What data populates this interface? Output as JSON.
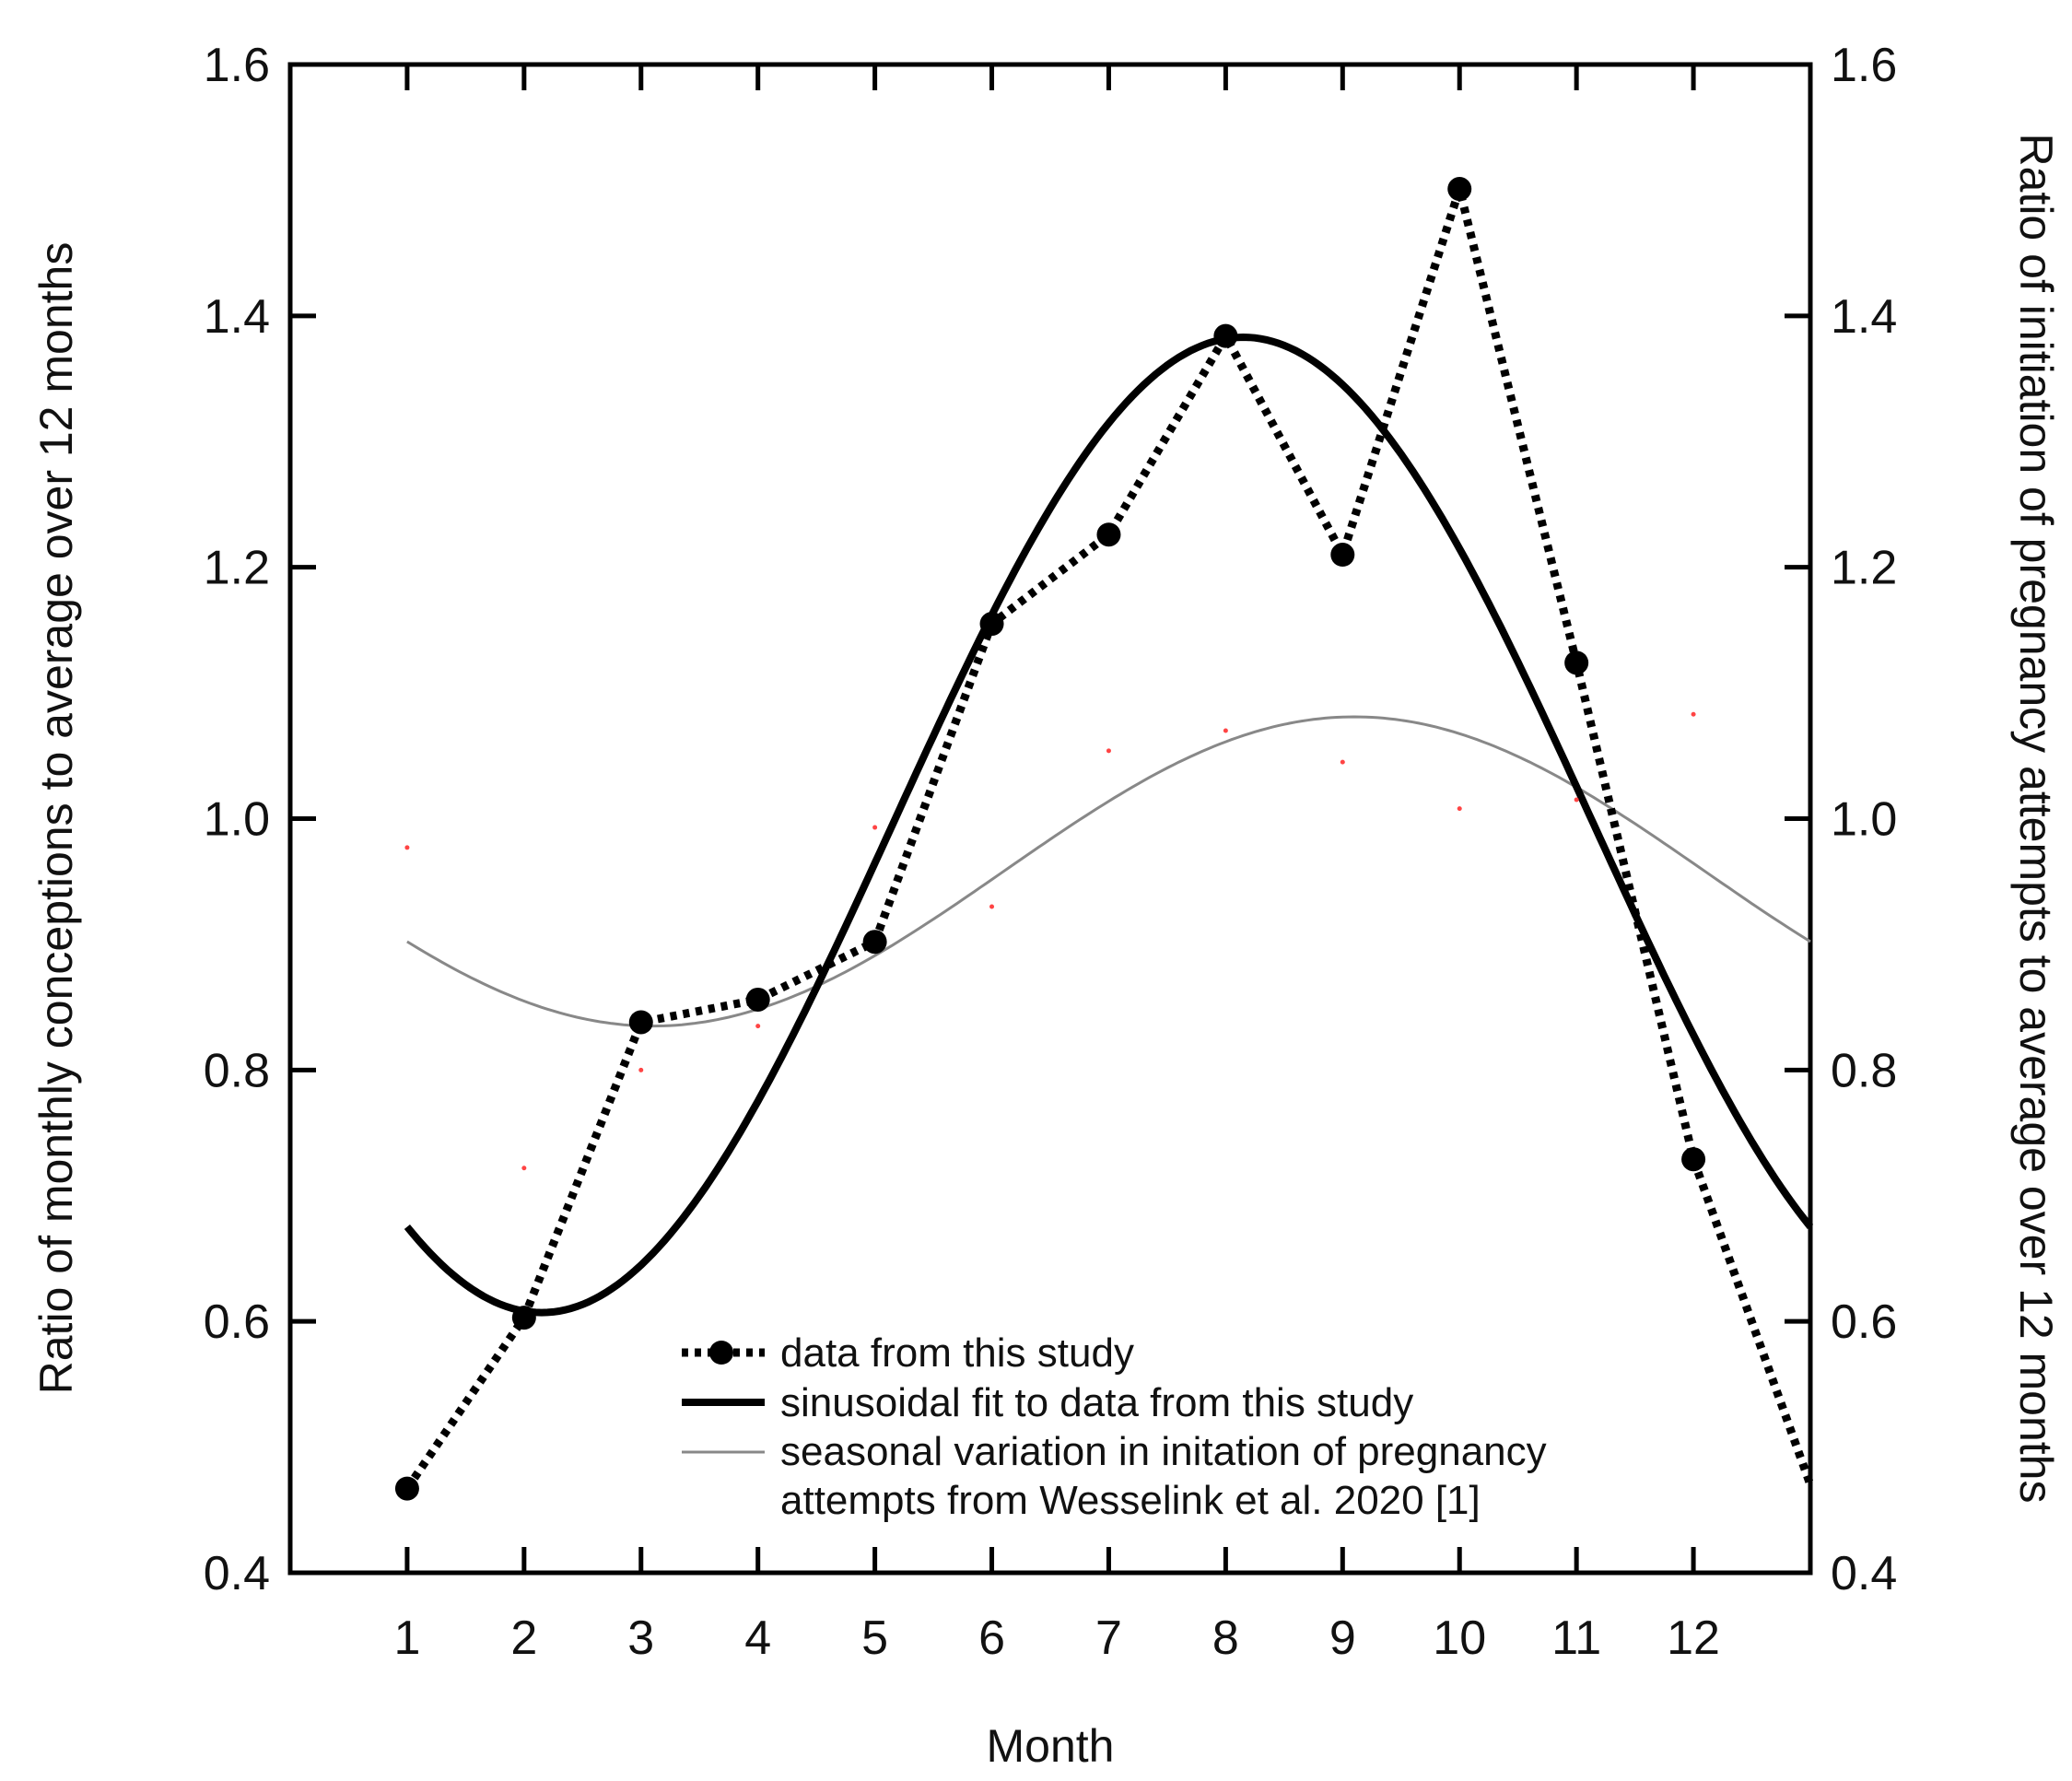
{
  "chart_data": {
    "type": "line",
    "title": "",
    "xlabel": "Month",
    "ylabel": "Ratio of monthly conceptions to average over 12 months",
    "ylabel_right": "Ratio of initiation of pregnancy attempts to average over 12 months",
    "x_categories": [
      "1",
      "2",
      "3",
      "4",
      "5",
      "6",
      "7",
      "8",
      "9",
      "10",
      "11",
      "12"
    ],
    "xlim": [
      0,
      13
    ],
    "ylim": [
      0.4,
      1.6
    ],
    "ylim_right": [
      0.4,
      1.6
    ],
    "y_ticks": [
      "0.4",
      "0.6",
      "0.8",
      "1.0",
      "1.2",
      "1.4",
      "1.6"
    ],
    "y_ticks_right": [
      "0.4",
      "0.6",
      "0.8",
      "1.0",
      "1.2",
      "1.4",
      "1.6"
    ],
    "grid": false,
    "legend_position": "bottom-center",
    "series": [
      {
        "name": "data from this study",
        "style": "dotted-with-markers",
        "color": "#000000",
        "x": [
          1,
          2,
          3,
          4,
          5,
          6,
          7,
          8,
          9,
          10,
          11,
          12
        ],
        "values": [
          0.467,
          0.603,
          0.838,
          0.856,
          0.902,
          1.155,
          1.226,
          1.384,
          1.21,
          1.501,
          1.124,
          0.729
        ],
        "extends_to": {
          "x": 13,
          "y": 0.47
        }
      },
      {
        "name": "sinusoidal fit to data from this study",
        "style": "thick-solid",
        "color": "#000000",
        "mean": 0.995,
        "amplitude": 0.388,
        "peak_month": 8.15,
        "period": 12,
        "x_range": [
          1,
          13
        ]
      },
      {
        "name": "seasonal variation in initation of pregnancy attempts from Wesselink et al. 2020 [1]",
        "legend_lines": [
          "seasonal variation in initation of pregnancy",
          "attempts from Wesselink et al. 2020 [1]"
        ],
        "style": "thin-solid",
        "color": "#888888",
        "mean": 0.958,
        "amplitude": 0.123,
        "peak_month": 9.1,
        "period": 12,
        "x_range": [
          1,
          13
        ]
      }
    ],
    "scatter_points": {
      "color": "#ff4444",
      "x": [
        1,
        2,
        3,
        4,
        5,
        6,
        7,
        8,
        9,
        10,
        11,
        12
      ],
      "values": [
        0.977,
        0.722,
        0.8,
        0.835,
        0.993,
        0.93,
        1.054,
        1.07,
        1.045,
        1.008,
        1.015,
        1.083
      ]
    }
  }
}
